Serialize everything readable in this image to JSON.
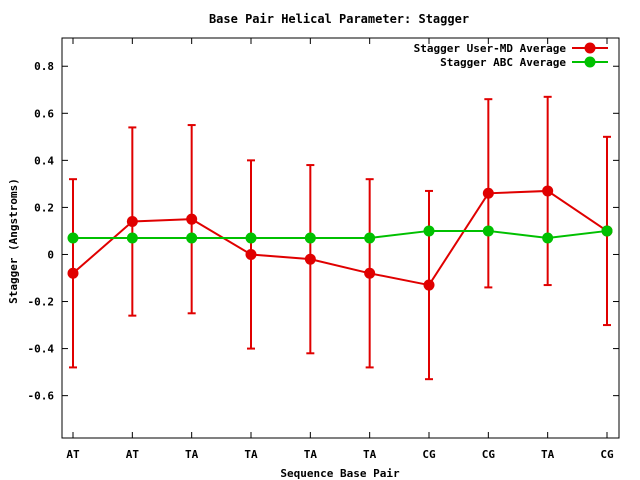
{
  "chart_data": {
    "type": "line",
    "title": "Base Pair Helical Parameter: Stagger",
    "xlabel": "Sequence Base Pair",
    "ylabel": "Stagger (Angstroms)",
    "categories": [
      "AT",
      "AT",
      "TA",
      "TA",
      "TA",
      "TA",
      "CG",
      "CG",
      "TA",
      "CG"
    ],
    "ylim": [
      -0.78,
      0.92
    ],
    "yticks": [
      "0.8",
      "0.6",
      "0.4",
      "0.2",
      "0",
      "-0.2",
      "-0.4",
      "-0.6"
    ],
    "grid": false,
    "legend_position": "top-right",
    "series": [
      {
        "name": "Stagger User-MD Average",
        "color": "#e00000",
        "values": [
          -0.08,
          0.14,
          0.15,
          0.0,
          -0.02,
          -0.08,
          -0.13,
          0.26,
          0.27,
          0.1
        ],
        "error_low": [
          -0.48,
          -0.26,
          -0.25,
          -0.4,
          -0.42,
          -0.48,
          -0.53,
          -0.14,
          -0.13,
          -0.3
        ],
        "error_high": [
          0.32,
          0.54,
          0.55,
          0.4,
          0.38,
          0.32,
          0.27,
          0.66,
          0.67,
          0.5
        ]
      },
      {
        "name": "Stagger ABC Average",
        "color": "#00c000",
        "values": [
          0.07,
          0.07,
          0.07,
          0.07,
          0.07,
          0.07,
          0.1,
          0.1,
          0.07,
          0.1
        ]
      }
    ]
  }
}
